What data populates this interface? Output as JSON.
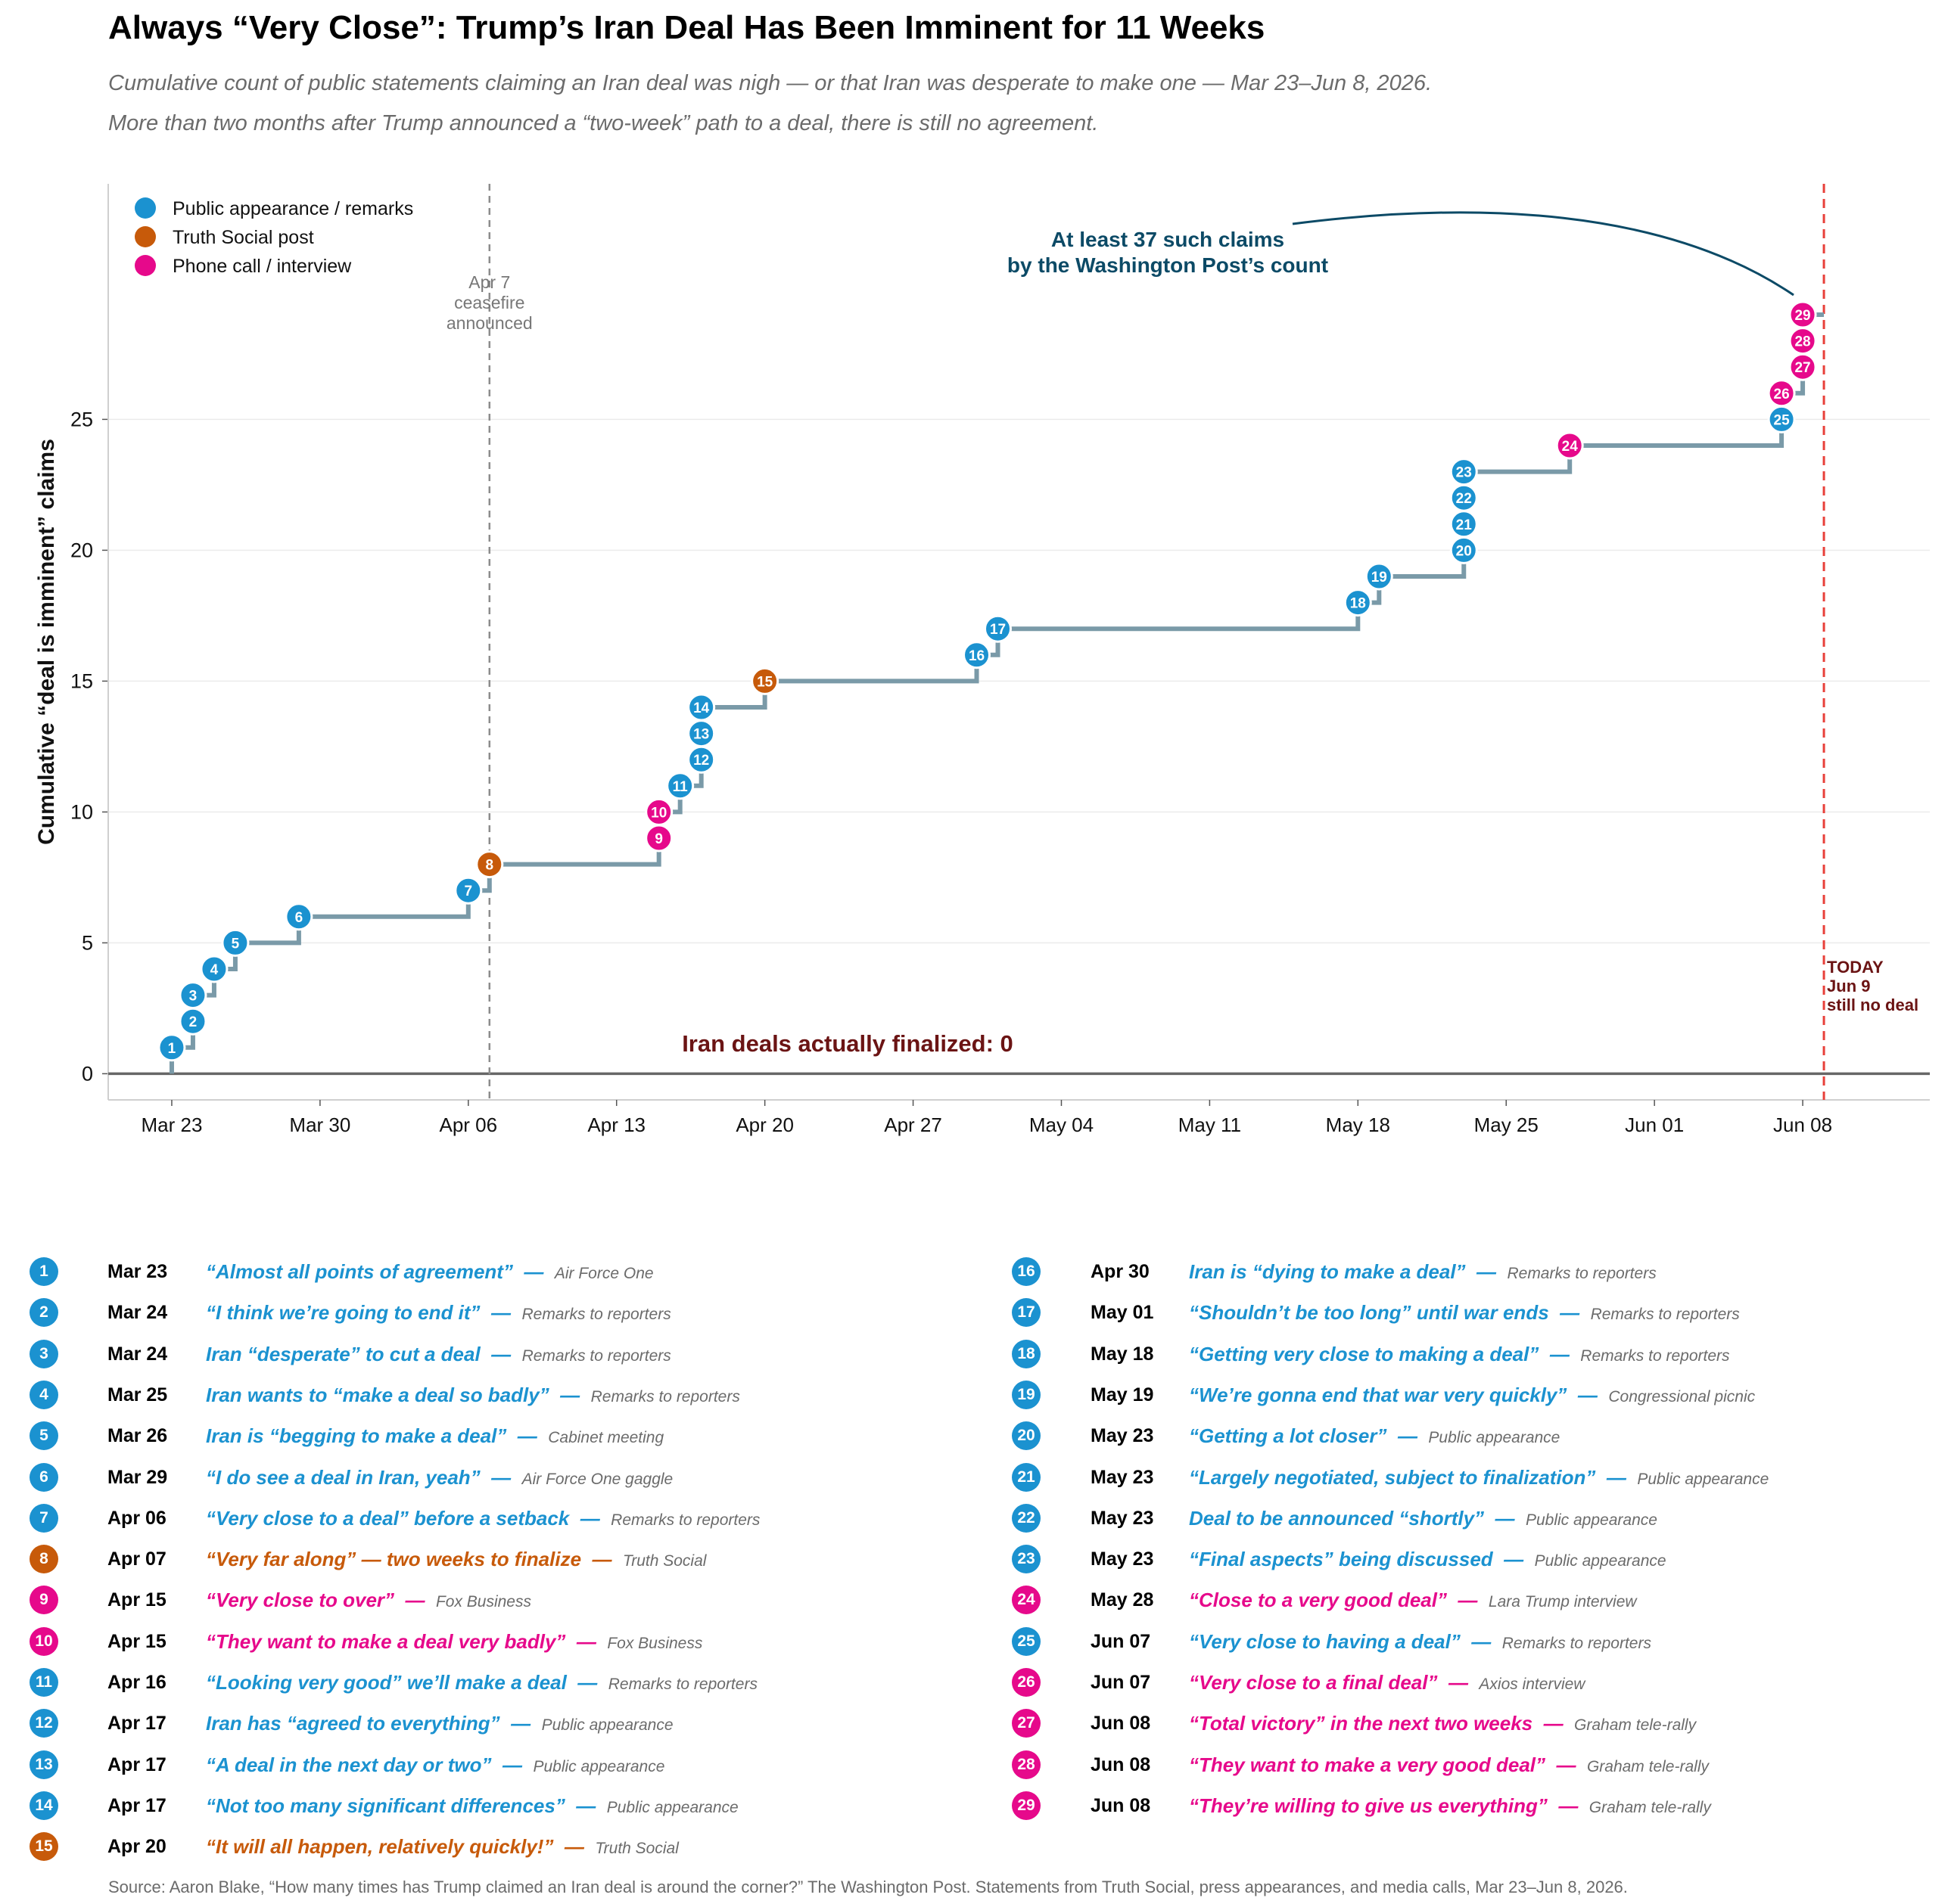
{
  "title": "Always “Very Close”: Trump’s Iran Deal Has Been Imminent for 11 Weeks",
  "subtitle_1": "Cumulative count of public statements claiming an Iran deal was nigh — or that Iran was desperate to make one — Mar 23–Jun 8, 2026.",
  "subtitle_2": "More than two months after Trump announced a “two-week” path to a deal, there is still no agreement.",
  "source": "Source: Aaron Blake, “How many times has Trump claimed an Iran deal is around the corner?” The Washington Post. Statements from Truth Social, press appearances, and media calls, Mar 23–Jun 8, 2026.",
  "colors": {
    "public": "#1b92d0",
    "truth": "#c75a0a",
    "phone": "#e6098b",
    "step": "#7a9aa8",
    "today": "#e8403a",
    "dark_red": "#6b1414",
    "annotation": "#0c4a66"
  },
  "legend": [
    {
      "key": "public",
      "label": "Public appearance / remarks"
    },
    {
      "key": "truth",
      "label": "Truth Social post"
    },
    {
      "key": "phone",
      "label": "Phone call / interview"
    }
  ],
  "chart_data": {
    "type": "line",
    "step": true,
    "ylabel": "Cumulative “deal is imminent” claims",
    "xlabel": "",
    "x_ticks": [
      "Mar 23",
      "Mar 30",
      "Apr 06",
      "Apr 13",
      "Apr 20",
      "Apr 27",
      "May 04",
      "May 11",
      "May 18",
      "May 25",
      "Jun 01",
      "Jun 08"
    ],
    "y_ticks": [
      0,
      5,
      10,
      15,
      20,
      25
    ],
    "ylim": [
      -1,
      34
    ],
    "x_range_days": [
      -3,
      83
    ],
    "grid": "horizontal",
    "legend_position": "top-left",
    "annotations": {
      "ceasefire": {
        "label_lines": [
          "Apr 7",
          "ceasefire",
          "announced"
        ],
        "day": 15
      },
      "today": {
        "label_lines": [
          "TODAY",
          "Jun 9",
          "still no deal"
        ],
        "day": 78
      },
      "wapo": {
        "label_lines": [
          "At least 37 such claims",
          "by the Washington Post’s count"
        ],
        "target": 29
      },
      "finalized": {
        "label": "Iran deals actually finalized: 0",
        "value": 0
      }
    },
    "events": [
      {
        "n": 1,
        "date": "Mar 23",
        "day": 0,
        "type": "public",
        "quote": "“Almost all points of agreement”",
        "source": "Air Force One"
      },
      {
        "n": 2,
        "date": "Mar 24",
        "day": 1,
        "type": "public",
        "quote": "“I think we’re going to end it”",
        "source": "Remarks to reporters"
      },
      {
        "n": 3,
        "date": "Mar 24",
        "day": 1,
        "type": "public",
        "quote": "Iran “desperate” to cut a deal",
        "source": "Remarks to reporters"
      },
      {
        "n": 4,
        "date": "Mar 25",
        "day": 2,
        "type": "public",
        "quote": "Iran wants to “make a deal so badly”",
        "source": "Remarks to reporters"
      },
      {
        "n": 5,
        "date": "Mar 26",
        "day": 3,
        "type": "public",
        "quote": "Iran is “begging to make a deal”",
        "source": "Cabinet meeting"
      },
      {
        "n": 6,
        "date": "Mar 29",
        "day": 6,
        "type": "public",
        "quote": "“I do see a deal in Iran, yeah”",
        "source": "Air Force One gaggle"
      },
      {
        "n": 7,
        "date": "Apr 06",
        "day": 14,
        "type": "public",
        "quote": "“Very close to a deal” before a setback",
        "source": "Remarks to reporters"
      },
      {
        "n": 8,
        "date": "Apr 07",
        "day": 15,
        "type": "truth",
        "quote": "“Very far along” — two weeks to finalize",
        "source": "Truth Social"
      },
      {
        "n": 9,
        "date": "Apr 15",
        "day": 23,
        "type": "phone",
        "quote": "“Very close to over”",
        "source": "Fox Business"
      },
      {
        "n": 10,
        "date": "Apr 15",
        "day": 23,
        "type": "phone",
        "quote": "“They want to make a deal very badly”",
        "source": "Fox Business"
      },
      {
        "n": 11,
        "date": "Apr 16",
        "day": 24,
        "type": "public",
        "quote": "“Looking very good” we’ll make a deal",
        "source": "Remarks to reporters"
      },
      {
        "n": 12,
        "date": "Apr 17",
        "day": 25,
        "type": "public",
        "quote": "Iran has “agreed to everything”",
        "source": "Public appearance"
      },
      {
        "n": 13,
        "date": "Apr 17",
        "day": 25,
        "type": "public",
        "quote": "“A deal in the next day or two”",
        "source": "Public appearance"
      },
      {
        "n": 14,
        "date": "Apr 17",
        "day": 25,
        "type": "public",
        "quote": "“Not too many significant differences”",
        "source": "Public appearance"
      },
      {
        "n": 15,
        "date": "Apr 20",
        "day": 28,
        "type": "truth",
        "quote": "“It will all happen, relatively quickly!”",
        "source": "Truth Social"
      },
      {
        "n": 16,
        "date": "Apr 30",
        "day": 38,
        "type": "public",
        "quote": "Iran is “dying to make a deal”",
        "source": "Remarks to reporters"
      },
      {
        "n": 17,
        "date": "May 01",
        "day": 39,
        "type": "public",
        "quote": "“Shouldn’t be too long” until war ends",
        "source": "Remarks to reporters"
      },
      {
        "n": 18,
        "date": "May 18",
        "day": 56,
        "type": "public",
        "quote": "“Getting very close to making a deal”",
        "source": "Remarks to reporters"
      },
      {
        "n": 19,
        "date": "May 19",
        "day": 57,
        "type": "public",
        "quote": "“We’re gonna end that war very quickly”",
        "source": "Congressional picnic"
      },
      {
        "n": 20,
        "date": "May 23",
        "day": 61,
        "type": "public",
        "quote": "“Getting a lot closer”",
        "source": "Public appearance"
      },
      {
        "n": 21,
        "date": "May 23",
        "day": 61,
        "type": "public",
        "quote": "“Largely negotiated, subject to finalization”",
        "source": "Public appearance"
      },
      {
        "n": 22,
        "date": "May 23",
        "day": 61,
        "type": "public",
        "quote": "Deal to be announced “shortly”",
        "source": "Public appearance"
      },
      {
        "n": 23,
        "date": "May 23",
        "day": 61,
        "type": "public",
        "quote": "“Final aspects” being discussed",
        "source": "Public appearance"
      },
      {
        "n": 24,
        "date": "May 28",
        "day": 66,
        "type": "phone",
        "quote": "“Close to a very good deal”",
        "source": "Lara Trump interview"
      },
      {
        "n": 25,
        "date": "Jun 07",
        "day": 76,
        "type": "public",
        "quote": "“Very close to having a deal”",
        "source": "Remarks to reporters"
      },
      {
        "n": 26,
        "date": "Jun 07",
        "day": 76,
        "type": "phone",
        "quote": "“Very close to a final deal”",
        "source": "Axios interview"
      },
      {
        "n": 27,
        "date": "Jun 08",
        "day": 77,
        "type": "phone",
        "quote": "“Total victory” in the next two weeks",
        "source": "Graham tele-rally"
      },
      {
        "n": 28,
        "date": "Jun 08",
        "day": 77,
        "type": "phone",
        "quote": "“They want to make a very good deal”",
        "source": "Graham tele-rally"
      },
      {
        "n": 29,
        "date": "Jun 08",
        "day": 77,
        "type": "phone",
        "quote": "“They’re willing to give us everything”",
        "source": "Graham tele-rally"
      }
    ]
  }
}
